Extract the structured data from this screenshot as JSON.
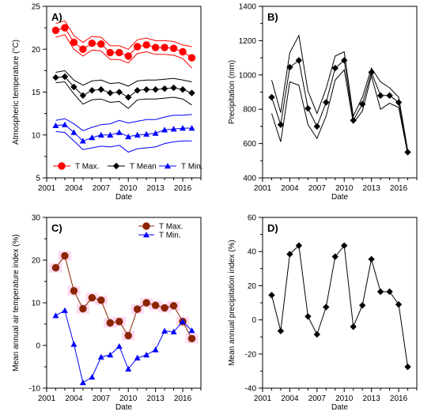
{
  "chart_data": [
    {
      "panel": "A)",
      "type": "line",
      "xlabel": "Date",
      "ylabel": "Atmospheric temperature (°C)",
      "xlim": [
        2001,
        2018
      ],
      "ylim": [
        5,
        25
      ],
      "xticks": [
        2001,
        2004,
        2007,
        2010,
        2013,
        2016
      ],
      "yticks": [
        5,
        10,
        15,
        20,
        25
      ],
      "legend_position": "bottom",
      "x": [
        2002,
        2003,
        2004,
        2005,
        2006,
        2007,
        2008,
        2009,
        2010,
        2011,
        2012,
        2013,
        2014,
        2015,
        2016,
        2017
      ],
      "series": [
        {
          "name": "T Max.",
          "color": "#ff0000",
          "marker": "circle",
          "values": [
            22.2,
            22.5,
            20.8,
            20.0,
            20.7,
            20.6,
            19.6,
            19.6,
            19.2,
            20.3,
            20.5,
            20.2,
            20.2,
            20.1,
            19.7,
            19.0
          ],
          "upper": [
            23.0,
            23.3,
            21.6,
            20.8,
            21.5,
            21.4,
            20.4,
            20.4,
            20.0,
            21.1,
            21.3,
            21.0,
            21.0,
            20.9,
            20.5,
            20.3
          ],
          "lower": [
            21.4,
            21.7,
            20.0,
            19.2,
            19.9,
            19.8,
            18.8,
            18.8,
            18.4,
            19.5,
            19.7,
            19.4,
            19.4,
            19.3,
            18.9,
            17.8
          ]
        },
        {
          "name": "T Mean",
          "color": "#000000",
          "marker": "diamond",
          "values": [
            16.7,
            16.8,
            15.6,
            14.6,
            15.2,
            15.3,
            14.9,
            15.0,
            14.4,
            15.2,
            15.3,
            15.3,
            15.4,
            15.5,
            15.3,
            14.9
          ],
          "upper": [
            17.3,
            17.5,
            16.4,
            15.8,
            16.3,
            16.4,
            16.0,
            16.1,
            15.7,
            16.3,
            16.4,
            16.4,
            16.5,
            16.6,
            16.4,
            16.2
          ],
          "lower": [
            16.1,
            16.2,
            14.8,
            13.6,
            14.1,
            14.2,
            13.8,
            13.9,
            13.1,
            14.1,
            14.2,
            14.2,
            14.3,
            14.4,
            14.2,
            13.5
          ]
        },
        {
          "name": "T Min.",
          "color": "#0000ff",
          "marker": "triangle",
          "values": [
            11.1,
            11.2,
            10.3,
            9.3,
            9.7,
            10.0,
            10.0,
            10.3,
            9.8,
            10.0,
            10.1,
            10.2,
            10.6,
            10.7,
            10.8,
            10.8
          ],
          "upper": [
            11.7,
            11.9,
            11.3,
            10.5,
            10.9,
            11.2,
            11.3,
            11.7,
            11.4,
            11.6,
            11.8,
            11.8,
            12.1,
            12.3,
            12.3,
            12.4
          ],
          "lower": [
            10.4,
            10.3,
            9.3,
            8.3,
            8.5,
            8.7,
            8.6,
            8.8,
            8.0,
            8.4,
            8.5,
            8.6,
            9.0,
            9.2,
            9.3,
            9.3
          ]
        }
      ]
    },
    {
      "panel": "B)",
      "type": "line",
      "xlabel": "Date",
      "ylabel": "Precipitation (mm)",
      "xlim": [
        2001,
        2018
      ],
      "ylim": [
        400,
        1400
      ],
      "xticks": [
        2001,
        2004,
        2007,
        2010,
        2013,
        2016
      ],
      "yticks": [
        400,
        600,
        800,
        1000,
        1200,
        1400
      ],
      "x": [
        2002,
        2003,
        2004,
        2005,
        2006,
        2007,
        2008,
        2009,
        2010,
        2011,
        2012,
        2013,
        2014,
        2015,
        2016,
        2017
      ],
      "series": [
        {
          "color": "#000000",
          "marker": "diamond",
          "values": [
            870,
            710,
            1045,
            1085,
            805,
            700,
            840,
            1040,
            1085,
            735,
            830,
            1015,
            880,
            880,
            840,
            550
          ],
          "upper": [
            970,
            780,
            1130,
            1230,
            905,
            775,
            920,
            1110,
            1135,
            760,
            870,
            1040,
            960,
            925,
            870,
            560
          ],
          "lower": [
            775,
            610,
            960,
            940,
            710,
            630,
            760,
            970,
            1030,
            720,
            790,
            995,
            800,
            835,
            810,
            540
          ]
        }
      ]
    },
    {
      "panel": "C)",
      "type": "line",
      "xlabel": "Date",
      "ylabel": "Mean annual air temperature index  (%)",
      "xlim": [
        2001,
        2018
      ],
      "ylim": [
        -10,
        30
      ],
      "xticks": [
        2001,
        2004,
        2007,
        2010,
        2013,
        2016
      ],
      "yticks": [
        -10,
        0,
        10,
        20,
        30
      ],
      "legend_position": "top-right",
      "x": [
        2002,
        2003,
        2004,
        2005,
        2006,
        2007,
        2008,
        2009,
        2010,
        2011,
        2012,
        2013,
        2014,
        2015,
        2016,
        2017
      ],
      "series": [
        {
          "name": "T Max.",
          "color": "#8b2500",
          "marker": "circle",
          "shade": "#ffd3ee",
          "values": [
            18.2,
            21.0,
            12.8,
            8.6,
            11.2,
            10.6,
            5.3,
            5.6,
            2.3,
            8.5,
            10.0,
            9.4,
            8.8,
            9.3,
            5.6,
            1.6
          ]
        },
        {
          "name": "T Min.",
          "color": "#0000ff",
          "marker": "triangle",
          "values": [
            7.0,
            8.2,
            0.3,
            -8.7,
            -7.4,
            -2.7,
            -2.2,
            -0.2,
            -5.5,
            -2.9,
            -2.2,
            -1.0,
            3.4,
            3.2,
            5.6,
            3.5
          ]
        }
      ]
    },
    {
      "panel": "D)",
      "type": "line",
      "xlabel": "Date",
      "ylabel": "Mean annual precipitation index (%)",
      "xlim": [
        2001,
        2018
      ],
      "ylim": [
        -40,
        60
      ],
      "xticks": [
        2001,
        2004,
        2007,
        2010,
        2013,
        2016
      ],
      "yticks": [
        -40,
        -20,
        0,
        20,
        40,
        60
      ],
      "x": [
        2002,
        2003,
        2004,
        2005,
        2006,
        2007,
        2008,
        2009,
        2010,
        2011,
        2012,
        2013,
        2014,
        2015,
        2016,
        2017
      ],
      "series": [
        {
          "color": "#000000",
          "marker": "diamond",
          "values": [
            14.5,
            -6.5,
            38.5,
            43.5,
            2.0,
            -8.5,
            7.5,
            37.0,
            43.5,
            -4.0,
            8.5,
            35.5,
            16.5,
            16.5,
            9.0,
            -27.5
          ]
        }
      ]
    }
  ]
}
